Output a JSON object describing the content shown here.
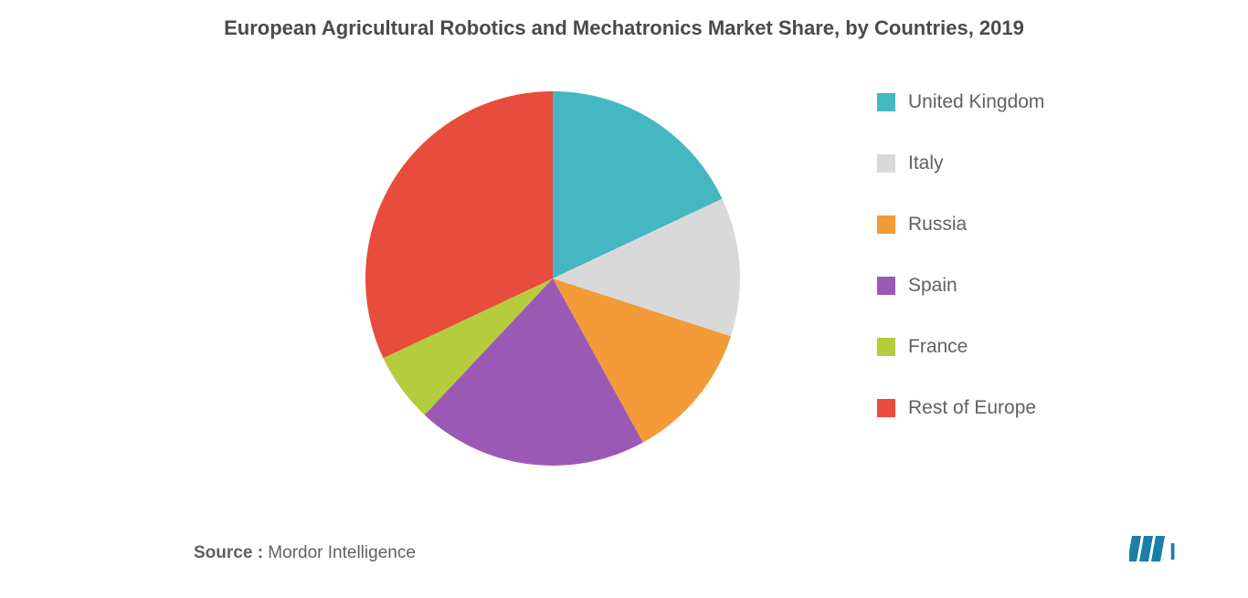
{
  "chart": {
    "type": "pie",
    "title": "European Agricultural Robotics and Mechatronics Market Share, by Countries, 2019",
    "title_fontsize": 22,
    "title_color": "#4a4a4a",
    "background_color": "#ffffff",
    "radius": 205,
    "segments": [
      {
        "label": "United Kingdom",
        "value": 18,
        "color": "#45b7c1"
      },
      {
        "label": "Italy",
        "value": 12,
        "color": "#d9d9d9"
      },
      {
        "label": "Russia",
        "value": 12,
        "color": "#f29b38"
      },
      {
        "label": "Spain",
        "value": 20,
        "color": "#9b59b6"
      },
      {
        "label": "France",
        "value": 6,
        "color": "#b5cc3c"
      },
      {
        "label": "Rest of Europe",
        "value": 32,
        "color": "#e74c3c"
      }
    ],
    "legend": {
      "fontsize": 21,
      "label_color": "#616161",
      "swatch_size": 20
    }
  },
  "source": {
    "prefix": "Source :",
    "name": " Mordor Intelligence",
    "fontsize": 19,
    "color": "#616161"
  },
  "logo": {
    "bar_color": "#1a7fa8",
    "text_color": "#1a7fa8"
  }
}
